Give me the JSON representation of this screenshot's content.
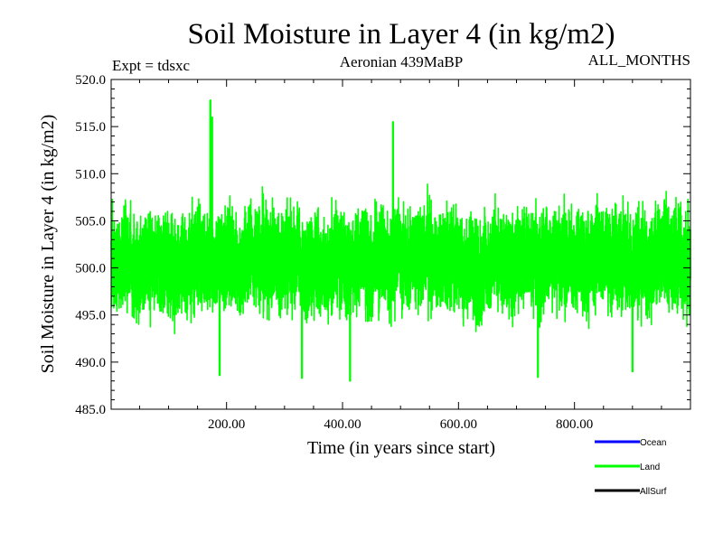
{
  "chart_data": {
    "type": "line",
    "title": "Soil Moisture in Layer 4 (in kg/m2)",
    "subtitle": "Aeronian 439MaBP",
    "experiment": "Expt = tdsxc",
    "period": "ALL_MONTHS",
    "xlabel": "Time (in years since start)",
    "ylabel": "Soil Moisture in Layer 4 (in kg/m2)",
    "xlim": [
      1,
      1000
    ],
    "ylim": [
      485,
      520
    ],
    "x_ticks": [
      200,
      400,
      600,
      800
    ],
    "x_tick_labels": [
      "200.00",
      "400.00",
      "600.00",
      "800.00"
    ],
    "y_ticks": [
      485,
      490,
      495,
      500,
      505,
      510,
      515,
      520
    ],
    "y_tick_labels": [
      "485.0",
      "490.0",
      "495.0",
      "500.0",
      "505.0",
      "510.0",
      "515.0",
      "520.0"
    ],
    "series": [
      {
        "name": "Land",
        "color": "#00ff00",
        "x_start": 1,
        "x_step": 0.0833,
        "mean": 500.8,
        "range_min": 488.0,
        "range_max": 517.8,
        "typical_min": 492.5,
        "typical_max": 509.5,
        "features": [
          {
            "x": 172,
            "value": 517.8
          },
          {
            "x": 175,
            "value": 516.0
          },
          {
            "x": 487,
            "value": 515.5
          },
          {
            "x": 330,
            "value": 488.3
          },
          {
            "x": 413,
            "value": 488.0
          },
          {
            "x": 737,
            "value": 488.4
          },
          {
            "x": 900,
            "value": 489.0
          },
          {
            "x": 188,
            "value": 488.6
          }
        ]
      }
    ],
    "legend": [
      {
        "label": "Ocean",
        "color": "#0000ff"
      },
      {
        "label": "Land",
        "color": "#00ff00"
      },
      {
        "label": "AllSurf",
        "color": "#000000"
      }
    ]
  }
}
